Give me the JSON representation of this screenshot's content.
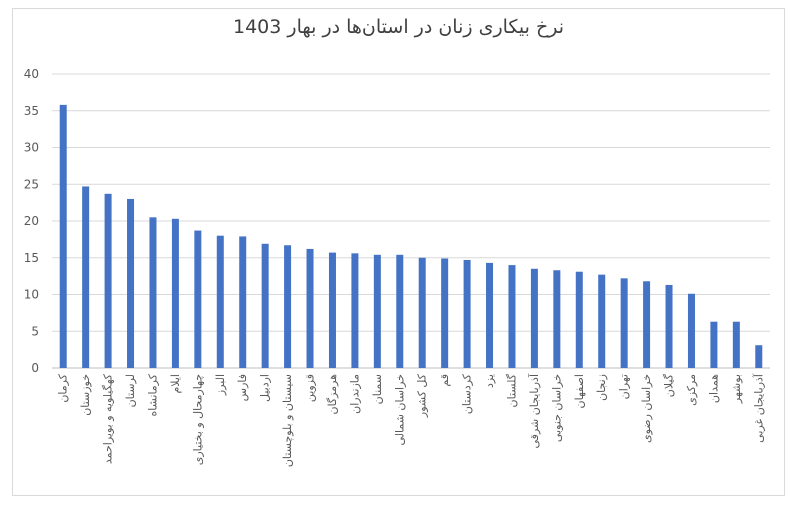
{
  "chart_data": {
    "type": "bar",
    "title": "نرخ بیکاری زنان در استان‌ها در بهار 1403",
    "xlabel": "",
    "ylabel": "",
    "ylim": [
      0,
      40
    ],
    "yticks": [
      0,
      5,
      10,
      15,
      20,
      25,
      30,
      35,
      40
    ],
    "grid": true,
    "legend": "none",
    "bar_color": "#4472c4",
    "categories": [
      "کرمان",
      "خوزستان",
      "کهگیلویه و بویراحمد",
      "لرستان",
      "کرمانشاه",
      "ایلام",
      "چهارمحال و بختیاری",
      "البرز",
      "فارس",
      "اردبیل",
      "سیستان و بلوچستان",
      "قزوین",
      "هرمزگان",
      "مازندران",
      "سمنان",
      "خراسان شمالی",
      "کل کشور",
      "قم",
      "کردستان",
      "یزد",
      "گلستان",
      "آذربایجان شرقی",
      "خراسان جنوبی",
      "اصفهان",
      "زنجان",
      "تهران",
      "خراسان رضوی",
      "گیلان",
      "مرکزی",
      "همدان",
      "بوشهر",
      "آذربایجان غربی"
    ],
    "values": [
      35.8,
      24.7,
      23.7,
      23.0,
      20.5,
      20.3,
      18.7,
      18.0,
      17.9,
      16.9,
      16.7,
      16.2,
      15.7,
      15.6,
      15.4,
      15.4,
      15.0,
      14.9,
      14.7,
      14.3,
      14.0,
      13.5,
      13.3,
      13.1,
      12.7,
      12.2,
      11.8,
      11.3,
      10.1,
      6.3,
      6.3,
      3.1
    ]
  }
}
